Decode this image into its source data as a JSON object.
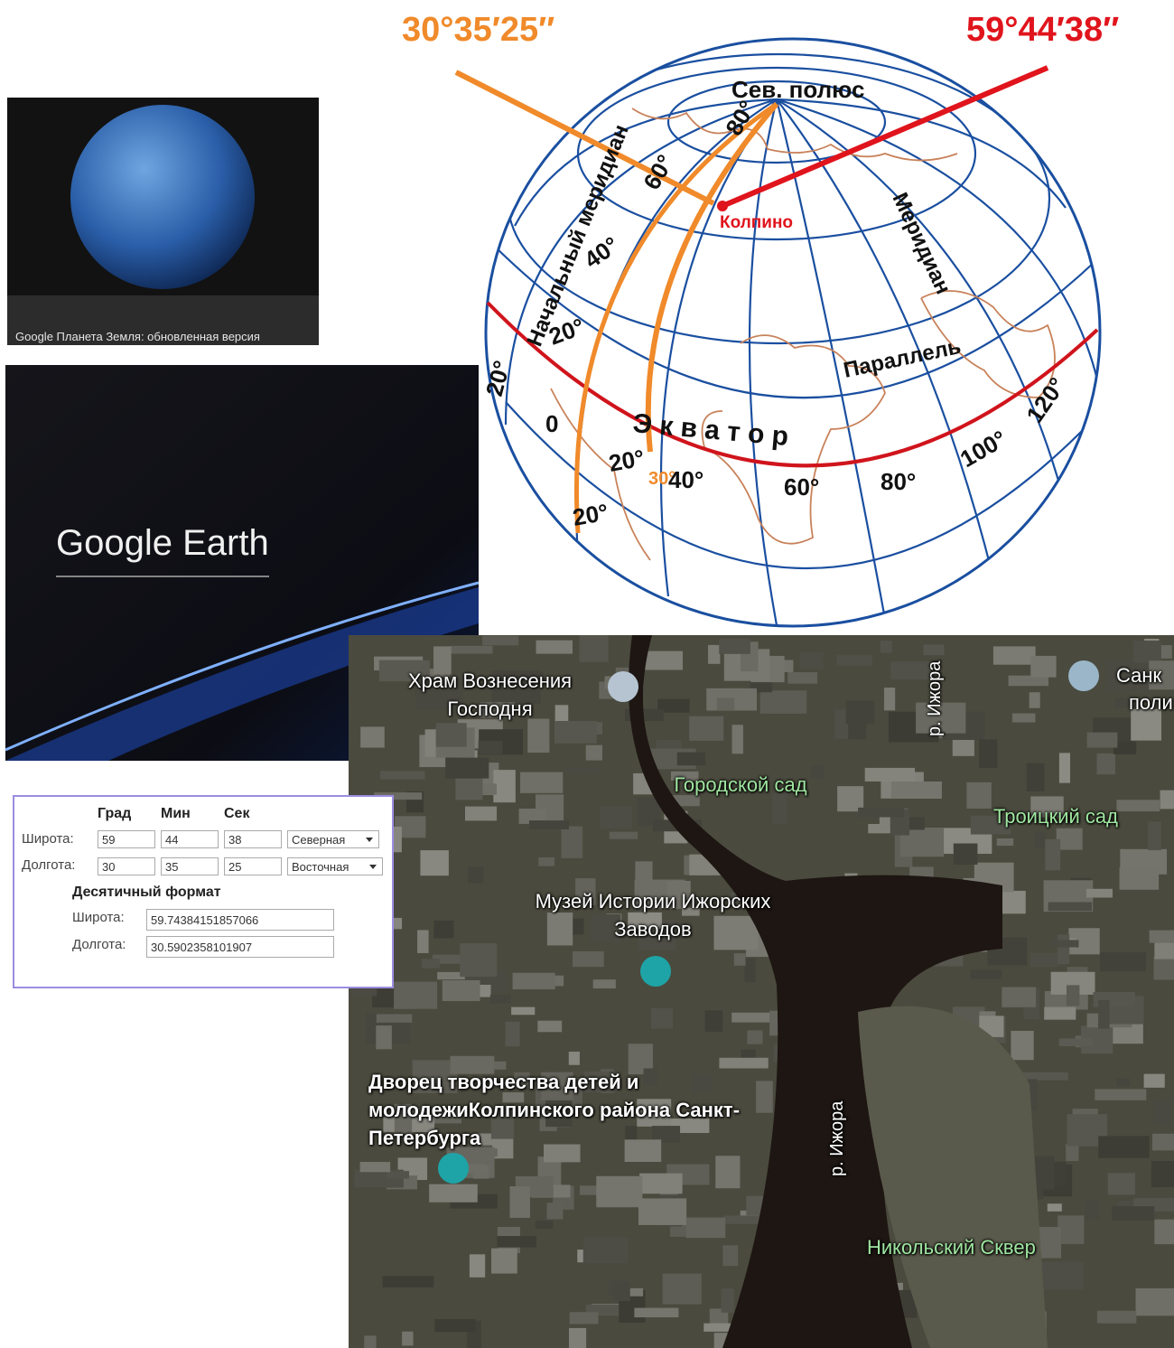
{
  "thumbnail": {
    "caption": "Google Планета Земля: обновленная версия"
  },
  "splash": {
    "title": "Google Earth"
  },
  "globe": {
    "longitude_label": "30°35′25″",
    "latitude_label": "59°44′38″",
    "pole": "Сев. полюс",
    "city": "Колпино",
    "prime_meridian": "Начальный меридиан",
    "meridian": "Меридиан",
    "parallel": "Параллель",
    "equator": "Э к в а т о р",
    "degree_marks": [
      "80°",
      "60°",
      "40°",
      "20°",
      "20°",
      "0",
      "20°",
      "30°",
      "40°",
      "60°",
      "80°",
      "100°",
      "120°",
      "20°"
    ]
  },
  "converter": {
    "headers": [
      "Град",
      "Мин",
      "Сек"
    ],
    "rows": [
      {
        "label": "Широта:",
        "deg": "59",
        "min": "44",
        "sec": "38",
        "hemisphere": "Северная"
      },
      {
        "label": "Долгота:",
        "deg": "30",
        "min": "35",
        "sec": "25",
        "hemisphere": "Восточная"
      }
    ],
    "decimal": {
      "title": "Десятичный формат",
      "rows": [
        {
          "label": "Широта:",
          "value": "59.74384151857066"
        },
        {
          "label": "Долгота:",
          "value": "30.5902358101907"
        }
      ]
    }
  },
  "map": {
    "labels": [
      "Храм Вознесения Господня",
      "Санк",
      "поли",
      "р. Ижора",
      "Городской сад",
      "Троицкий сад",
      "Музей Истории Ижорских Заводов",
      "Дворец творчества детей и молодежиКолпинского района Санкт-Петербурга",
      "р. Ижора",
      "Никольский Сквер"
    ]
  }
}
